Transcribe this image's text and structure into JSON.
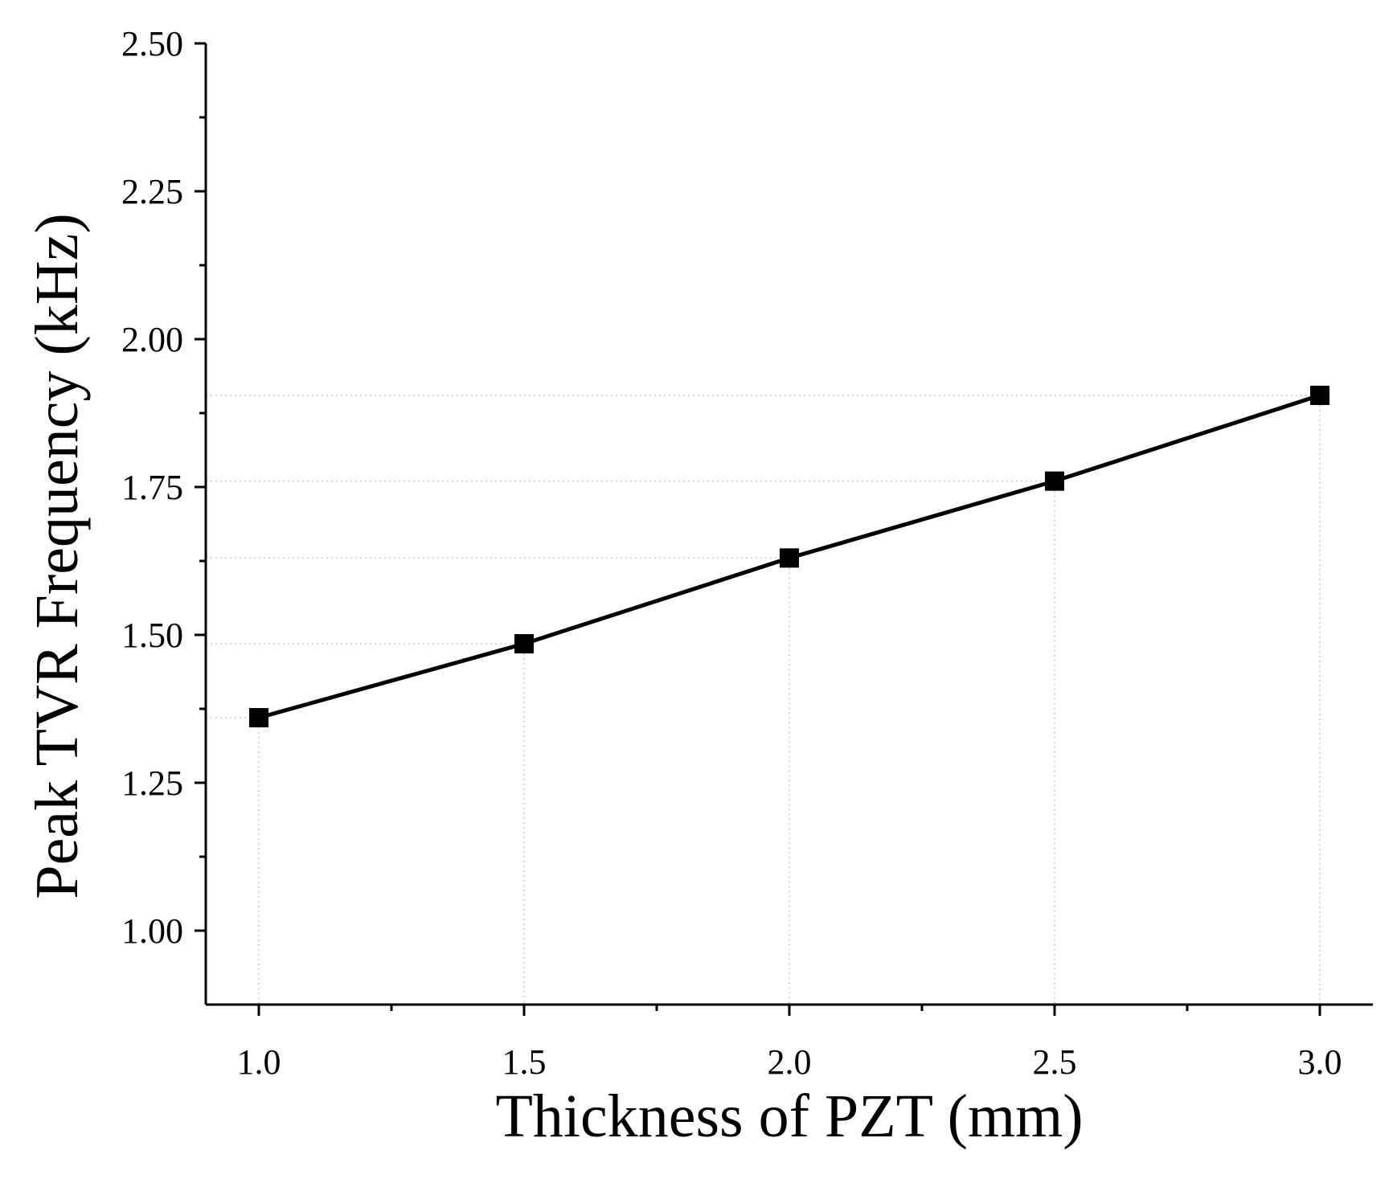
{
  "chart_data": {
    "type": "line",
    "title": "",
    "xlabel": "Thickness of PZT (mm)",
    "ylabel": "Peak TVR Frequency (kHz)",
    "xlim": [
      0.9,
      3.1
    ],
    "ylim": [
      0.875,
      2.5
    ],
    "x_major_ticks": [
      1.0,
      1.5,
      2.0,
      2.5,
      3.0
    ],
    "x_tick_labels": [
      "1.0",
      "1.5",
      "2.0",
      "2.5",
      "3.0"
    ],
    "x_minor_ticks": [
      1.25,
      1.75,
      2.25,
      2.75
    ],
    "y_major_ticks": [
      1.0,
      1.25,
      1.5,
      1.75,
      2.0,
      2.25,
      2.5
    ],
    "y_tick_labels": [
      "1.00",
      "1.25",
      "1.50",
      "1.75",
      "2.00",
      "2.25",
      "2.50"
    ],
    "y_minor_ticks": [
      1.125,
      1.375,
      1.625,
      1.875,
      2.125,
      2.375
    ],
    "series": [
      {
        "name": "Peak TVR Frequency",
        "x": [
          1.0,
          1.5,
          2.0,
          2.5,
          3.0
        ],
        "y": [
          1.36,
          1.485,
          1.63,
          1.76,
          1.905
        ],
        "marker": "square",
        "color": "#000000"
      }
    ],
    "grid": false,
    "drop_lines": true
  }
}
